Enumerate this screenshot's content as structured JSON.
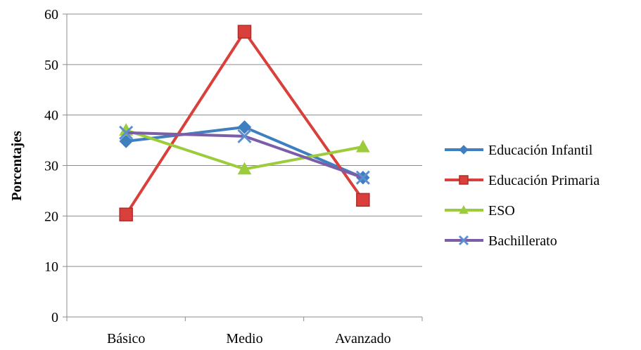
{
  "chart_data": {
    "type": "line",
    "categories": [
      "Básico",
      "Medio",
      "Avanzado"
    ],
    "series": [
      {
        "name": "Educación Infantil",
        "values": [
          34.8,
          37.6,
          27.6
        ],
        "color": "#3f7fc0",
        "marker": "diamond"
      },
      {
        "name": "Educación Primaria",
        "values": [
          20.3,
          56.5,
          23.2
        ],
        "color": "#d9403b",
        "marker": "square"
      },
      {
        "name": "ESO",
        "values": [
          37.0,
          29.3,
          33.7
        ],
        "color": "#9ccc3c",
        "marker": "triangle"
      },
      {
        "name": "Bachillerato",
        "values": [
          36.5,
          35.8,
          27.6
        ],
        "color": "#7b5ea7",
        "marker": "x"
      }
    ],
    "ylabel": "Porcentajes",
    "xlabel": "",
    "ylim": [
      0,
      60
    ],
    "yticks": [
      0,
      10,
      20,
      30,
      40,
      50,
      60
    ],
    "grid": true,
    "legend": "right"
  }
}
